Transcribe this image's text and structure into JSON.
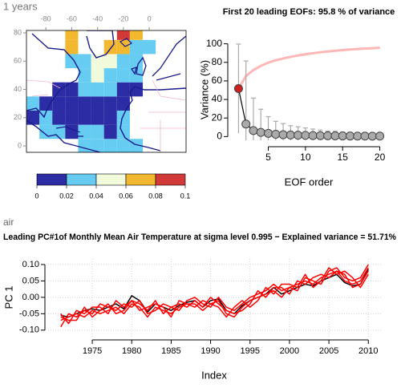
{
  "chart_data": [
    {
      "type": "heatmap",
      "title": "1 years",
      "x": [
        -90,
        -80,
        -70,
        -60,
        -50,
        -40,
        -30,
        -20,
        -10,
        0,
        10,
        20
      ],
      "y": [
        0,
        10,
        20,
        30,
        40,
        50,
        60,
        70,
        80
      ],
      "z": [
        [
          null,
          null,
          null,
          null,
          0.03,
          0.03,
          0.03,
          0.03,
          0.03,
          null,
          null,
          null
        ],
        [
          null,
          0.03,
          0.03,
          0.01,
          0.03,
          0.03,
          0.01,
          0.03,
          null,
          null,
          null,
          null
        ],
        [
          0.01,
          0.03,
          0.01,
          0.01,
          0.01,
          0.01,
          0.01,
          0.03,
          null,
          null,
          null,
          null
        ],
        [
          0.03,
          0.01,
          0.01,
          0.01,
          0.01,
          0.01,
          0.01,
          0.01,
          null,
          null,
          null,
          null
        ],
        [
          null,
          null,
          0.01,
          0.01,
          0.03,
          0.03,
          0.03,
          0.01,
          0.01,
          null,
          null,
          null
        ],
        [
          null,
          null,
          null,
          null,
          0.03,
          0.05,
          0.03,
          0.03,
          0.03,
          null,
          null,
          null
        ],
        [
          null,
          null,
          null,
          0.03,
          0.03,
          0.05,
          0.05,
          0.03,
          0.03,
          null,
          null,
          null
        ],
        [
          null,
          null,
          null,
          0.07,
          null,
          null,
          0.07,
          0.07,
          0.03,
          0.03,
          null,
          null
        ],
        [
          null,
          null,
          null,
          0.07,
          null,
          null,
          null,
          0.09,
          0.07,
          null,
          null,
          null
        ]
      ],
      "xlim": [
        -95,
        28.5
      ],
      "ylim": [
        -4.5,
        81.7
      ],
      "xticks": [
        -80,
        -60,
        -40,
        -20,
        0
      ],
      "yticks": [
        0,
        20,
        40,
        60,
        80
      ],
      "colorbar_ticks": [
        0,
        0.02,
        0.04,
        0.06,
        0.08,
        0.1
      ],
      "colors": [
        "#2c2ca4",
        "#66ccf2",
        "#f2fadc",
        "#f2b830",
        "#d23a3a"
      ]
    },
    {
      "type": "errorbar",
      "title": "First 20 leading EOFs:  95.8 % of variance",
      "xlabel": "EOF order",
      "ylabel": "Variance (%)",
      "x": [
        1,
        2,
        3,
        4,
        5,
        6,
        7,
        8,
        9,
        10,
        11,
        12,
        13,
        14,
        15,
        16,
        17,
        18,
        19,
        20
      ],
      "values": [
        51.7,
        13.5,
        6.5,
        4.5,
        3.5,
        2.5,
        2,
        1.7,
        1.5,
        1.3,
        1.1,
        1,
        0.9,
        0.8,
        0.7,
        0.6,
        0.55,
        0.5,
        0.45,
        0.5
      ],
      "error": [
        48,
        68,
        35,
        25,
        18,
        14,
        12,
        10,
        9,
        8,
        7,
        6,
        5,
        5,
        4,
        4,
        3,
        3,
        3,
        3
      ],
      "cumulative": [
        51.7,
        65.2,
        71.7,
        76.2,
        79.7,
        82.2,
        84.2,
        85.9,
        87.4,
        88.7,
        89.8,
        90.8,
        91.7,
        92.5,
        93.2,
        93.8,
        94.35,
        94.85,
        95.3,
        95.8
      ],
      "xlim": [
        0.2,
        20.8
      ],
      "ylim": [
        -4,
        104
      ],
      "xticks": [
        5,
        10,
        15,
        20
      ],
      "yticks": [
        0,
        20,
        40,
        60,
        80,
        100
      ],
      "color": "#aaaaaa",
      "highlight_index": 0,
      "highlight_color": "#cc2222",
      "line_color": "#000000",
      "cumulative_color": "#ffb6b6",
      "error_color": "#aaaaaa"
    },
    {
      "type": "line",
      "subtitle": "air",
      "title": "Leading PC#1of Monthly Mean Air Temperature at sigma level 0.995 − Explained variance = 51.71%",
      "xlabel": "Index",
      "ylabel": "PC 1",
      "x": [
        1971,
        1972,
        1973,
        1974,
        1975,
        1976,
        1977,
        1978,
        1979,
        1980,
        1981,
        1982,
        1983,
        1984,
        1985,
        1986,
        1987,
        1988,
        1989,
        1990,
        1991,
        1992,
        1993,
        1994,
        1995,
        1996,
        1997,
        1998,
        1999,
        2000,
        2001,
        2002,
        2003,
        2004,
        2005,
        2006,
        2007,
        2008,
        2009,
        2010
      ],
      "series": [
        {
          "color": "#000000",
          "values": [
            -0.055,
            -0.06,
            -0.05,
            -0.04,
            -0.035,
            -0.04,
            -0.03,
            -0.02,
            -0.035,
            0.005,
            -0.01,
            -0.045,
            -0.02,
            -0.03,
            -0.04,
            -0.025,
            -0.015,
            -0.01,
            -0.03,
            -0.01,
            -0.005,
            -0.04,
            -0.05,
            -0.025,
            -0.01,
            0.0,
            0.01,
            0.03,
            0.01,
            0.02,
            0.03,
            0.04,
            0.035,
            0.05,
            0.06,
            0.07,
            0.045,
            0.035,
            0.04,
            0.085
          ]
        },
        {
          "color": "#ff0000",
          "values": [
            -0.07,
            -0.06,
            -0.05,
            -0.06,
            -0.04,
            -0.05,
            -0.04,
            -0.03,
            -0.05,
            -0.02,
            -0.03,
            -0.06,
            -0.03,
            -0.04,
            -0.05,
            -0.03,
            -0.02,
            -0.02,
            -0.04,
            -0.02,
            -0.01,
            -0.05,
            -0.06,
            -0.03,
            -0.01,
            0.0,
            0.01,
            0.02,
            0.0,
            0.03,
            0.04,
            0.05,
            0.04,
            0.06,
            0.07,
            0.08,
            0.05,
            0.04,
            0.05,
            0.09
          ]
        },
        {
          "color": "#ff0000",
          "values": [
            -0.05,
            -0.08,
            -0.04,
            -0.05,
            -0.03,
            -0.03,
            -0.05,
            -0.01,
            -0.03,
            -0.01,
            -0.02,
            -0.04,
            -0.01,
            -0.05,
            -0.03,
            -0.04,
            -0.01,
            0.0,
            -0.02,
            -0.03,
            0.0,
            -0.03,
            -0.04,
            -0.02,
            0.0,
            0.01,
            0.02,
            0.04,
            0.02,
            0.03,
            0.02,
            0.06,
            0.05,
            0.04,
            0.08,
            0.09,
            0.06,
            0.05,
            0.06,
            0.1
          ]
        },
        {
          "color": "#ff0000",
          "values": [
            -0.09,
            -0.05,
            -0.06,
            -0.04,
            -0.05,
            -0.02,
            -0.03,
            -0.04,
            -0.02,
            -0.03,
            -0.01,
            -0.05,
            -0.04,
            -0.02,
            -0.03,
            -0.02,
            -0.03,
            -0.01,
            -0.03,
            0.0,
            -0.02,
            -0.04,
            -0.05,
            -0.04,
            -0.02,
            0.02,
            0.0,
            0.03,
            0.03,
            0.01,
            0.05,
            0.04,
            0.06,
            0.07,
            0.06,
            0.08,
            0.07,
            0.03,
            0.04,
            0.08
          ]
        },
        {
          "color": "#ff0000",
          "values": [
            -0.06,
            -0.07,
            -0.07,
            -0.03,
            -0.06,
            -0.04,
            -0.02,
            -0.05,
            -0.04,
            -0.01,
            -0.04,
            -0.03,
            -0.02,
            -0.03,
            -0.06,
            -0.01,
            -0.02,
            -0.03,
            -0.01,
            -0.02,
            -0.03,
            -0.06,
            -0.03,
            -0.01,
            -0.03,
            -0.01,
            0.03,
            0.01,
            0.04,
            0.04,
            0.03,
            0.07,
            0.03,
            0.05,
            0.09,
            0.07,
            0.08,
            0.06,
            0.03,
            0.07
          ]
        }
      ],
      "xlim": [
        1969.4,
        2011.6
      ],
      "ylim": [
        -0.12,
        0.117
      ],
      "xticks": [
        1975,
        1980,
        1985,
        1990,
        1995,
        2000,
        2005,
        2010
      ],
      "yticks": [
        {
          "value": -0.1,
          "label": "-0.10"
        },
        {
          "value": -0.05,
          "label": "-0.05"
        },
        {
          "value": 0,
          "label": "0.00"
        },
        {
          "value": 0.05,
          "label": "0.05"
        },
        {
          "value": 0.1,
          "label": "0.10"
        }
      ],
      "grid": true
    }
  ]
}
